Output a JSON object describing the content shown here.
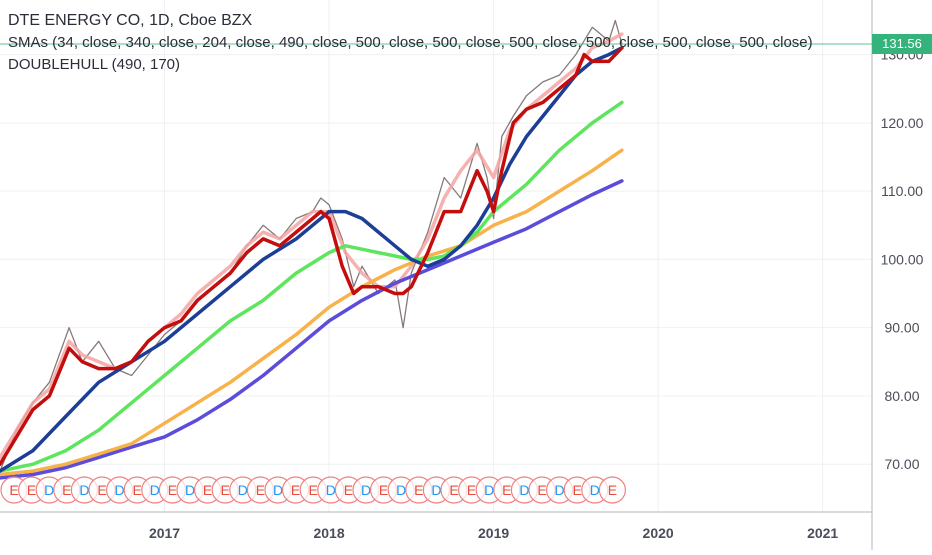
{
  "header": {
    "symbol_line": "DTE ENERGY CO, 1D, Cboe BZX",
    "sma_line": "SMAs (34, close, 340, close, 204, close, 490, close, 500, close, 500, close, 500, close, 500, close, 500, close, 500, close)",
    "hull_line": "DOUBLEHULL (490, 170)"
  },
  "last_price_label": "131.56",
  "colors": {
    "price": "#7a6a6a",
    "hull_fast": "#c40d0d",
    "hull_slow": "#f4a3a3",
    "sma_blue": "#1c3f95",
    "sma_green": "#5ee55e",
    "sma_orange": "#f7b24a",
    "sma_purple": "#5b4cdb",
    "last_price": "#34b37a",
    "earnings_ring": "#f08080",
    "earnings_text": "#e74c3c",
    "dividend_text": "#2196f3"
  },
  "chart_data": {
    "type": "line",
    "title": "DTE ENERGY CO, 1D, Cboe BZX",
    "xlabel": "",
    "ylabel": "",
    "xlim": [
      2016.0,
      2021.3
    ],
    "ylim": [
      63,
      138
    ],
    "x_ticks": [
      2017,
      2018,
      2019,
      2020,
      2021
    ],
    "x_tick_labels": [
      "2017",
      "2018",
      "2019",
      "2020",
      "2021"
    ],
    "y_ticks": [
      70,
      80,
      90,
      100,
      110,
      120,
      130
    ],
    "y_tick_labels": [
      "70.00",
      "80.00",
      "90.00",
      "100.00",
      "110.00",
      "120.00",
      "130.00"
    ],
    "last_price": 131.56,
    "grid": true,
    "legend": "none",
    "series": [
      {
        "key": "price",
        "x": [
          2016.0,
          2016.1,
          2016.2,
          2016.3,
          2016.42,
          2016.5,
          2016.6,
          2016.7,
          2016.8,
          2016.9,
          2017.0,
          2017.1,
          2017.2,
          2017.3,
          2017.4,
          2017.5,
          2017.6,
          2017.7,
          2017.8,
          2017.9,
          2017.95,
          2018.0,
          2018.08,
          2018.15,
          2018.2,
          2018.3,
          2018.4,
          2018.45,
          2018.5,
          2018.6,
          2018.7,
          2018.8,
          2018.9,
          2018.96,
          2019.0,
          2019.05,
          2019.12,
          2019.2,
          2019.3,
          2019.4,
          2019.5,
          2019.6,
          2019.7,
          2019.74,
          2019.78
        ],
        "values": [
          69,
          75,
          79,
          82,
          90,
          85,
          88,
          84,
          83,
          86,
          89,
          91,
          94,
          96,
          98,
          102,
          105,
          103,
          106,
          107,
          109,
          108,
          103,
          96,
          99,
          95,
          97,
          90,
          98,
          104,
          112,
          109,
          117,
          112,
          106,
          118,
          121,
          124,
          126,
          127,
          130,
          134,
          132,
          135,
          131.56
        ]
      },
      {
        "key": "hull_slow",
        "x": [
          2016.0,
          2016.1,
          2016.2,
          2016.3,
          2016.42,
          2016.5,
          2016.6,
          2016.7,
          2016.8,
          2016.9,
          2017.0,
          2017.1,
          2017.2,
          2017.3,
          2017.4,
          2017.5,
          2017.6,
          2017.7,
          2017.8,
          2017.9,
          2018.0,
          2018.1,
          2018.2,
          2018.3,
          2018.4,
          2018.5,
          2018.6,
          2018.7,
          2018.8,
          2018.9,
          2019.0,
          2019.1,
          2019.2,
          2019.3,
          2019.4,
          2019.5,
          2019.6,
          2019.7,
          2019.78
        ],
        "values": [
          71,
          75,
          79,
          81,
          88,
          86,
          85,
          84,
          85,
          88,
          90,
          92,
          95,
          97,
          99,
          102,
          104,
          103,
          105,
          107,
          107,
          101,
          98,
          96,
          96,
          99,
          103,
          109,
          113,
          116,
          112,
          119,
          122,
          124,
          126,
          128,
          131,
          132,
          133
        ]
      },
      {
        "key": "hull_fast",
        "x": [
          2016.0,
          2016.1,
          2016.2,
          2016.3,
          2016.42,
          2016.5,
          2016.6,
          2016.7,
          2016.8,
          2016.9,
          2017.0,
          2017.1,
          2017.2,
          2017.3,
          2017.4,
          2017.5,
          2017.6,
          2017.7,
          2017.8,
          2017.9,
          2017.95,
          2018.0,
          2018.08,
          2018.15,
          2018.2,
          2018.3,
          2018.4,
          2018.45,
          2018.5,
          2018.6,
          2018.7,
          2018.8,
          2018.9,
          2018.96,
          2019.0,
          2019.05,
          2019.12,
          2019.2,
          2019.3,
          2019.4,
          2019.5,
          2019.55,
          2019.6,
          2019.7,
          2019.78
        ],
        "values": [
          70,
          74,
          78,
          80,
          87,
          85,
          84,
          84,
          85,
          88,
          90,
          91,
          94,
          96,
          98,
          101,
          103,
          102,
          104,
          106,
          107,
          106,
          99,
          95,
          96,
          96,
          95,
          95,
          96,
          101,
          107,
          107,
          113,
          110,
          107,
          113,
          120,
          122,
          123,
          125,
          127,
          130,
          129,
          129,
          131
        ]
      },
      {
        "key": "sma_blue",
        "x": [
          2016.0,
          2016.2,
          2016.4,
          2016.6,
          2016.8,
          2017.0,
          2017.2,
          2017.4,
          2017.6,
          2017.8,
          2017.9,
          2018.0,
          2018.1,
          2018.2,
          2018.3,
          2018.4,
          2018.5,
          2018.6,
          2018.7,
          2018.8,
          2018.9,
          2019.0,
          2019.1,
          2019.2,
          2019.3,
          2019.4,
          2019.5,
          2019.6,
          2019.7,
          2019.78
        ],
        "values": [
          69,
          72,
          77,
          82,
          85,
          88,
          92,
          96,
          100,
          103,
          105,
          107,
          107,
          106,
          104,
          102,
          100,
          99,
          100,
          102,
          105,
          109,
          114,
          118,
          121,
          124,
          127,
          129,
          130,
          131
        ]
      },
      {
        "key": "sma_green",
        "x": [
          2016.0,
          2016.2,
          2016.4,
          2016.6,
          2016.8,
          2017.0,
          2017.2,
          2017.4,
          2017.6,
          2017.8,
          2018.0,
          2018.1,
          2018.2,
          2018.3,
          2018.4,
          2018.5,
          2018.6,
          2018.7,
          2018.8,
          2018.9,
          2019.0,
          2019.2,
          2019.4,
          2019.6,
          2019.78
        ],
        "values": [
          69,
          70,
          72,
          75,
          79,
          83,
          87,
          91,
          94,
          98,
          101,
          102,
          101.5,
          101,
          100.5,
          100,
          100,
          100.5,
          102,
          104,
          107,
          111,
          116,
          120,
          123
        ]
      },
      {
        "key": "sma_orange",
        "x": [
          2016.0,
          2016.2,
          2016.4,
          2016.6,
          2016.8,
          2017.0,
          2017.2,
          2017.4,
          2017.6,
          2017.8,
          2018.0,
          2018.2,
          2018.4,
          2018.6,
          2018.8,
          2019.0,
          2019.2,
          2019.4,
          2019.6,
          2019.78
        ],
        "values": [
          68.5,
          69,
          70,
          71.5,
          73,
          76,
          79,
          82,
          85.5,
          89,
          93,
          96,
          98.5,
          100.5,
          102,
          105,
          107,
          110,
          113,
          116
        ]
      },
      {
        "key": "sma_purple",
        "x": [
          2016.0,
          2016.2,
          2016.4,
          2016.6,
          2016.8,
          2017.0,
          2017.2,
          2017.4,
          2017.6,
          2017.8,
          2018.0,
          2018.2,
          2018.4,
          2018.6,
          2018.8,
          2019.0,
          2019.2,
          2019.4,
          2019.6,
          2019.78
        ],
        "values": [
          68,
          68.5,
          69.5,
          71,
          72.5,
          74,
          76.5,
          79.5,
          83,
          87,
          91,
          94,
          96.5,
          98.5,
          100.5,
          102.5,
          104.5,
          107,
          109.5,
          111.5
        ]
      }
    ],
    "events": [
      "E",
      "E",
      "D",
      "E",
      "D",
      "E",
      "D",
      "E",
      "D",
      "E",
      "D",
      "E",
      "E",
      "D",
      "E",
      "D",
      "E",
      "E",
      "D",
      "E",
      "D",
      "E",
      "D",
      "E",
      "D",
      "E",
      "E",
      "D",
      "E",
      "D",
      "E",
      "D",
      "E",
      "D",
      "E"
    ]
  }
}
